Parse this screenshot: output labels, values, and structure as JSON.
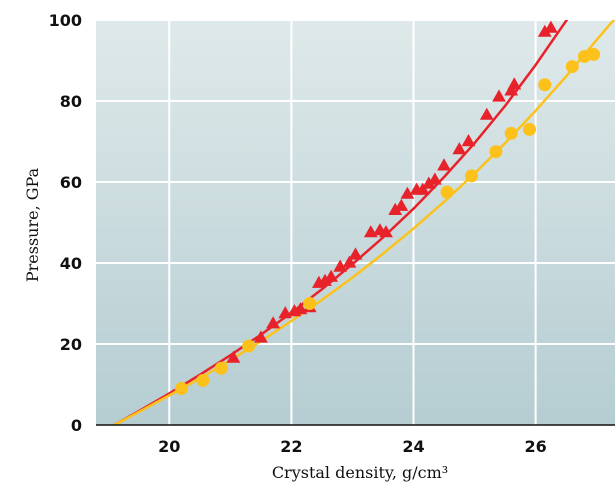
{
  "chart_data": {
    "type": "scatter",
    "title": "",
    "xlabel": "Crystal density, g/cm³",
    "ylabel": "Pressure, GPa",
    "xlim": [
      18.8,
      27.3
    ],
    "ylim": [
      0,
      100
    ],
    "x_ticks": [
      20,
      22,
      24,
      26
    ],
    "y_ticks": [
      0,
      20,
      40,
      60,
      80,
      100
    ],
    "grid": true,
    "legend": "none",
    "colors": {
      "background_top": "#dfe9ea",
      "background_bottom": "#b5cdd2",
      "grid": "#ffffff",
      "red_series": "#e8222a",
      "yellow_series": "#fcc21b"
    },
    "series": [
      {
        "marker": "triangle",
        "color": "#e8222a",
        "points": [
          [
            21.05,
            16.5
          ],
          [
            21.5,
            21.5
          ],
          [
            21.7,
            25
          ],
          [
            21.9,
            27.5
          ],
          [
            22.05,
            28
          ],
          [
            22.15,
            28.5
          ],
          [
            22.3,
            29
          ],
          [
            22.45,
            35
          ],
          [
            22.55,
            35.5
          ],
          [
            22.65,
            36.5
          ],
          [
            22.8,
            39
          ],
          [
            22.95,
            40
          ],
          [
            23.05,
            42
          ],
          [
            23.3,
            47.5
          ],
          [
            23.45,
            48
          ],
          [
            23.55,
            47.5
          ],
          [
            23.7,
            53
          ],
          [
            23.8,
            54
          ],
          [
            23.9,
            57
          ],
          [
            24.05,
            58
          ],
          [
            24.15,
            58
          ],
          [
            24.25,
            59.5
          ],
          [
            24.35,
            60.5
          ],
          [
            24.5,
            64
          ],
          [
            24.75,
            68
          ],
          [
            24.9,
            70
          ],
          [
            25.2,
            76.5
          ],
          [
            25.4,
            81
          ],
          [
            25.6,
            82.5
          ],
          [
            25.65,
            84
          ],
          [
            26.15,
            97
          ],
          [
            26.25,
            98
          ]
        ],
        "curve": [
          [
            19.1,
            0
          ],
          [
            19.5,
            3.4
          ],
          [
            20.0,
            7.8
          ],
          [
            20.5,
            12.4
          ],
          [
            21.0,
            17.2
          ],
          [
            21.5,
            22.3
          ],
          [
            22.0,
            27.7
          ],
          [
            22.5,
            33.5
          ],
          [
            23.0,
            39.7
          ],
          [
            23.5,
            46.3
          ],
          [
            24.0,
            53.4
          ],
          [
            24.5,
            61.2
          ],
          [
            25.0,
            69.6
          ],
          [
            25.5,
            78.8
          ],
          [
            26.0,
            88.9
          ],
          [
            26.4,
            97.6
          ],
          [
            26.6,
            102
          ]
        ]
      },
      {
        "marker": "circle",
        "color": "#fcc21b",
        "points": [
          [
            20.2,
            9
          ],
          [
            20.55,
            11
          ],
          [
            20.85,
            14
          ],
          [
            21.3,
            19.5
          ],
          [
            22.3,
            30
          ],
          [
            24.55,
            57.5
          ],
          [
            24.95,
            61.5
          ],
          [
            25.35,
            67.5
          ],
          [
            25.6,
            72
          ],
          [
            25.9,
            73
          ],
          [
            26.15,
            84
          ],
          [
            26.6,
            88.5
          ],
          [
            26.8,
            91
          ],
          [
            26.95,
            91.5
          ]
        ],
        "curve": [
          [
            19.1,
            0
          ],
          [
            19.5,
            3.2
          ],
          [
            20.0,
            7.3
          ],
          [
            20.5,
            11.5
          ],
          [
            21.0,
            16.0
          ],
          [
            21.5,
            20.7
          ],
          [
            22.0,
            25.7
          ],
          [
            22.5,
            30.9
          ],
          [
            23.0,
            36.4
          ],
          [
            23.5,
            42.3
          ],
          [
            24.0,
            48.5
          ],
          [
            24.5,
            55.1
          ],
          [
            25.0,
            62.1
          ],
          [
            25.5,
            69.6
          ],
          [
            26.0,
            77.6
          ],
          [
            26.5,
            86.1
          ],
          [
            27.0,
            95.1
          ],
          [
            27.3,
            100.4
          ]
        ]
      }
    ]
  }
}
